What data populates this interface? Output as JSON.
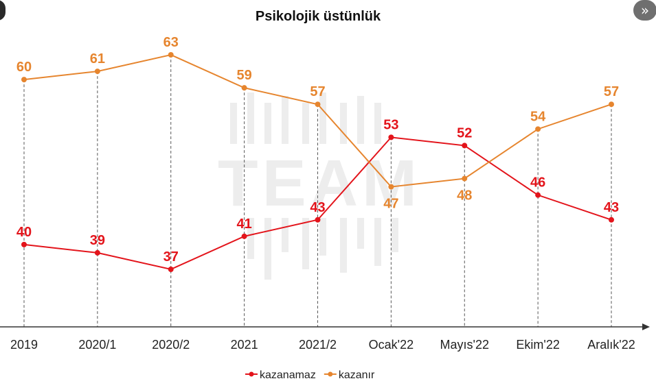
{
  "page": {
    "next_icon": "double-chevron-right-icon",
    "prev_edge_icon": "chevron-left-icon"
  },
  "colors": {
    "kazanamaz": "#e3141b",
    "kazanir": "#e6852e",
    "axis": "#333333",
    "guide": "#555555",
    "watermark": "#ededed"
  },
  "chart_data": {
    "type": "line",
    "title": "Psikolojik üstünlük",
    "xlabel": "",
    "ylabel": "",
    "categories": [
      "2019",
      "2020/1",
      "2020/2",
      "2021",
      "2021/2",
      "Ocak'22",
      "Mayıs'22",
      "Ekim'22",
      "Aralık'22"
    ],
    "series": [
      {
        "name": "kazanamaz",
        "color": "#e3141b",
        "values": [
          40,
          39,
          37,
          41,
          43,
          53,
          52,
          46,
          43
        ]
      },
      {
        "name": "kazanır",
        "color": "#e6852e",
        "values": [
          60,
          61,
          63,
          59,
          57,
          47,
          48,
          54,
          57
        ]
      }
    ],
    "label_position": {
      "kazanamaz": [
        "above",
        "above",
        "above",
        "above",
        "above",
        "above",
        "above",
        "above",
        "above"
      ],
      "kazanır": [
        "above",
        "above",
        "above",
        "above",
        "above",
        "below",
        "below",
        "above",
        "above"
      ]
    },
    "grid": false,
    "vertical_guides": true,
    "legend": {
      "placement": "bottom-center",
      "entries": [
        "kazanamaz",
        "kazanır"
      ]
    },
    "watermark": "TEAM"
  }
}
